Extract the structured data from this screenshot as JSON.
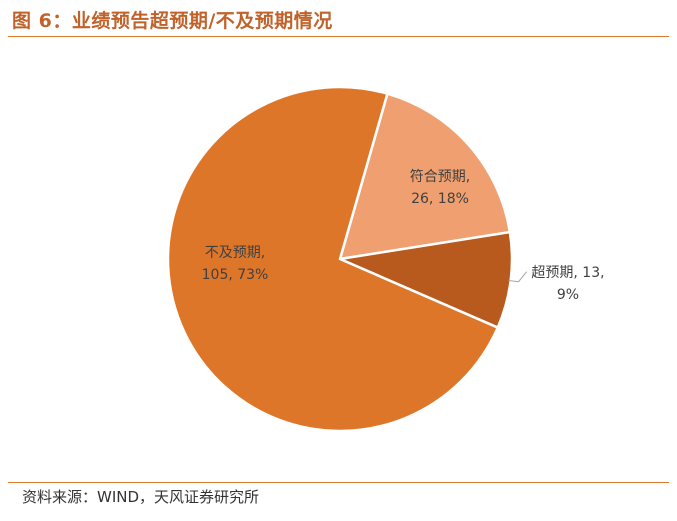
{
  "figure": {
    "title": "图 6：业绩预告超预期/不及预期情况",
    "source": "资料来源：WIND，天风证券研究所"
  },
  "colors": {
    "accent": "#e07a2e",
    "title": "#c0622a"
  },
  "chart_data": {
    "type": "pie",
    "title": "",
    "slices": [
      {
        "label": "符合预期",
        "value": 26,
        "percent": "18%",
        "label_line1": "符合预期,",
        "label_line2": "26, 18%",
        "color": "#f0a070"
      },
      {
        "label": "超预期",
        "value": 13,
        "percent": "9%",
        "label_line1": "超预期, 13,",
        "label_line2": "9%",
        "color": "#b85a1e"
      },
      {
        "label": "不及预期",
        "value": 105,
        "percent": "73%",
        "label_line1": "不及预期,",
        "label_line2": "105, 73%",
        "color": "#de762a"
      }
    ]
  }
}
